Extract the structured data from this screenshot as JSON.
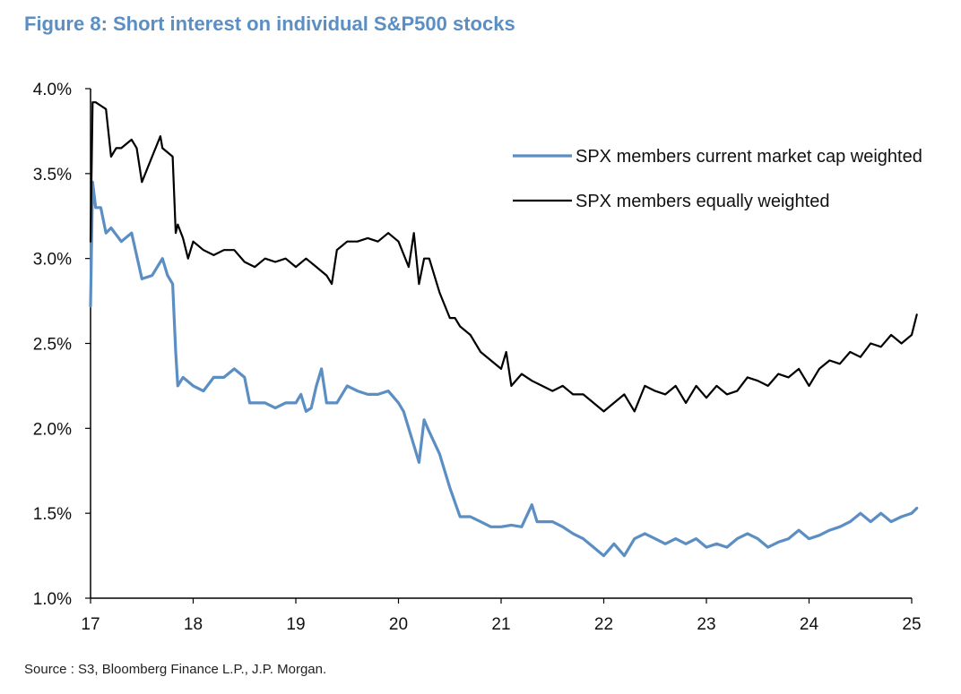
{
  "figure": {
    "title": "Figure 8: Short interest on individual S&P500 stocks",
    "source": "Source : S3, Bloomberg Finance L.P., J.P. Morgan."
  },
  "colors": {
    "title": "#5b8ec2",
    "cap_weighted": "#5b8ec2",
    "equal_weighted": "#000000"
  },
  "chart_data": {
    "type": "line",
    "title": "",
    "xlabel": "",
    "ylabel": "",
    "xlim": [
      2017,
      2025
    ],
    "ylim": [
      1.0,
      4.0
    ],
    "x_ticks": [
      "17",
      "18",
      "19",
      "20",
      "21",
      "22",
      "23",
      "24",
      "25"
    ],
    "y_ticks": [
      "1.0%",
      "1.5%",
      "2.0%",
      "2.5%",
      "3.0%",
      "3.5%",
      "4.0%"
    ],
    "grid": false,
    "legend_position": "top-right",
    "series": [
      {
        "name": "SPX members current market cap weighted",
        "x": [
          2017.0,
          2017.02,
          2017.05,
          2017.1,
          2017.15,
          2017.2,
          2017.3,
          2017.4,
          2017.5,
          2017.6,
          2017.7,
          2017.75,
          2017.8,
          2017.83,
          2017.85,
          2017.9,
          2018.0,
          2018.1,
          2018.2,
          2018.3,
          2018.4,
          2018.5,
          2018.55,
          2018.7,
          2018.8,
          2018.9,
          2019.0,
          2019.05,
          2019.1,
          2019.15,
          2019.2,
          2019.25,
          2019.3,
          2019.4,
          2019.5,
          2019.6,
          2019.7,
          2019.8,
          2019.9,
          2020.0,
          2020.05,
          2020.1,
          2020.15,
          2020.2,
          2020.25,
          2020.3,
          2020.4,
          2020.5,
          2020.6,
          2020.7,
          2020.8,
          2020.9,
          2021.0,
          2021.1,
          2021.2,
          2021.3,
          2021.35,
          2021.5,
          2021.6,
          2021.7,
          2021.8,
          2021.9,
          2022.0,
          2022.1,
          2022.2,
          2022.3,
          2022.4,
          2022.5,
          2022.6,
          2022.7,
          2022.8,
          2022.9,
          2023.0,
          2023.1,
          2023.2,
          2023.3,
          2023.4,
          2023.5,
          2023.6,
          2023.7,
          2023.8,
          2023.9,
          2024.0,
          2024.1,
          2024.2,
          2024.3,
          2024.4,
          2024.5,
          2024.6,
          2024.7,
          2024.8,
          2024.9,
          2025.0,
          2025.05
        ],
        "values": [
          2.72,
          3.45,
          3.3,
          3.3,
          3.15,
          3.18,
          3.1,
          3.15,
          2.88,
          2.9,
          3.0,
          2.9,
          2.85,
          2.45,
          2.25,
          2.3,
          2.25,
          2.22,
          2.3,
          2.3,
          2.35,
          2.3,
          2.15,
          2.15,
          2.12,
          2.15,
          2.15,
          2.2,
          2.1,
          2.12,
          2.25,
          2.35,
          2.15,
          2.15,
          2.25,
          2.22,
          2.2,
          2.2,
          2.22,
          2.15,
          2.1,
          2.0,
          1.9,
          1.8,
          2.05,
          1.98,
          1.85,
          1.65,
          1.48,
          1.48,
          1.45,
          1.42,
          1.42,
          1.43,
          1.42,
          1.55,
          1.45,
          1.45,
          1.42,
          1.38,
          1.35,
          1.3,
          1.25,
          1.32,
          1.25,
          1.35,
          1.38,
          1.35,
          1.32,
          1.35,
          1.32,
          1.35,
          1.3,
          1.32,
          1.3,
          1.35,
          1.38,
          1.35,
          1.3,
          1.33,
          1.35,
          1.4,
          1.35,
          1.37,
          1.4,
          1.42,
          1.45,
          1.5,
          1.45,
          1.5,
          1.45,
          1.48,
          1.5,
          1.53
        ]
      },
      {
        "name": "SPX members equally weighted",
        "x": [
          2017.0,
          2017.02,
          2017.05,
          2017.1,
          2017.15,
          2017.2,
          2017.25,
          2017.3,
          2017.4,
          2017.45,
          2017.5,
          2017.6,
          2017.68,
          2017.7,
          2017.8,
          2017.83,
          2017.85,
          2017.9,
          2017.95,
          2018.0,
          2018.1,
          2018.2,
          2018.3,
          2018.4,
          2018.5,
          2018.6,
          2018.7,
          2018.8,
          2018.9,
          2019.0,
          2019.1,
          2019.2,
          2019.3,
          2019.35,
          2019.4,
          2019.5,
          2019.6,
          2019.7,
          2019.8,
          2019.9,
          2020.0,
          2020.1,
          2020.15,
          2020.2,
          2020.25,
          2020.3,
          2020.4,
          2020.5,
          2020.55,
          2020.6,
          2020.7,
          2020.8,
          2020.9,
          2021.0,
          2021.05,
          2021.1,
          2021.2,
          2021.3,
          2021.4,
          2021.5,
          2021.6,
          2021.7,
          2021.8,
          2021.9,
          2022.0,
          2022.1,
          2022.2,
          2022.3,
          2022.4,
          2022.5,
          2022.6,
          2022.7,
          2022.8,
          2022.9,
          2023.0,
          2023.1,
          2023.2,
          2023.3,
          2023.4,
          2023.5,
          2023.6,
          2023.7,
          2023.8,
          2023.9,
          2024.0,
          2024.1,
          2024.2,
          2024.3,
          2024.4,
          2024.5,
          2024.6,
          2024.7,
          2024.8,
          2024.9,
          2025.0,
          2025.05
        ],
        "values": [
          3.1,
          3.92,
          3.92,
          3.9,
          3.88,
          3.6,
          3.65,
          3.65,
          3.7,
          3.65,
          3.45,
          3.6,
          3.72,
          3.65,
          3.6,
          3.15,
          3.2,
          3.12,
          3.0,
          3.1,
          3.05,
          3.02,
          3.05,
          3.05,
          2.98,
          2.95,
          3.0,
          2.98,
          3.0,
          2.95,
          3.0,
          2.95,
          2.9,
          2.85,
          3.05,
          3.1,
          3.1,
          3.12,
          3.1,
          3.15,
          3.1,
          2.95,
          3.15,
          2.85,
          3.0,
          3.0,
          2.8,
          2.65,
          2.65,
          2.6,
          2.55,
          2.45,
          2.4,
          2.35,
          2.45,
          2.25,
          2.32,
          2.28,
          2.25,
          2.22,
          2.25,
          2.2,
          2.2,
          2.15,
          2.1,
          2.15,
          2.2,
          2.1,
          2.25,
          2.22,
          2.2,
          2.25,
          2.15,
          2.25,
          2.18,
          2.25,
          2.2,
          2.22,
          2.3,
          2.28,
          2.25,
          2.32,
          2.3,
          2.35,
          2.25,
          2.35,
          2.4,
          2.38,
          2.45,
          2.42,
          2.5,
          2.48,
          2.55,
          2.5,
          2.55,
          2.67
        ]
      }
    ]
  }
}
